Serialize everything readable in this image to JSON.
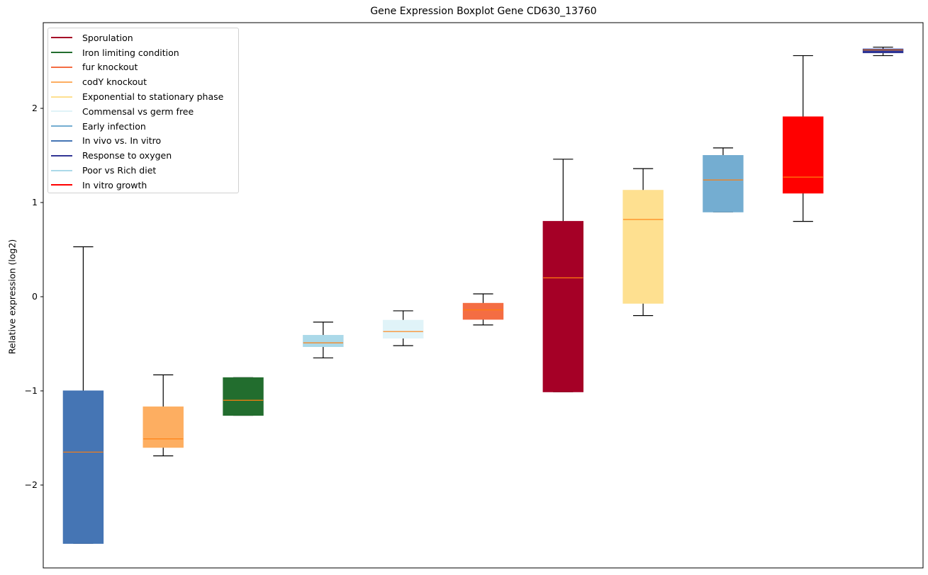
{
  "chart_data": {
    "type": "box",
    "title": "Gene Expression Boxplot Gene CD630_13760",
    "xlabel": "",
    "ylabel": "Relative expression (log2)",
    "ylim": [
      -2.88,
      2.91
    ],
    "yticks": [
      -2,
      -1,
      0,
      1,
      2
    ],
    "ytick_labels": [
      "−2",
      "−1",
      "0",
      "1",
      "2"
    ],
    "grid": false,
    "legend_position": "top-left",
    "legend": [
      {
        "label": "Sporulation",
        "color": "#a50026"
      },
      {
        "label": "Iron limiting condition",
        "color": "#226d2e"
      },
      {
        "label": "fur knockout",
        "color": "#f46d43"
      },
      {
        "label": "codY knockout",
        "color": "#fdae61"
      },
      {
        "label": "Exponential to stationary phase",
        "color": "#fee090"
      },
      {
        "label": "Commensal vs germ free",
        "color": "#e0f3f8"
      },
      {
        "label": "Early infection",
        "color": "#74add1"
      },
      {
        "label": "In vivo vs. In vitro",
        "color": "#4575b4"
      },
      {
        "label": "Response to oxygen",
        "color": "#313695"
      },
      {
        "label": "Poor vs Rich diet",
        "color": "#abd9e9"
      },
      {
        "label": "In vitro growth",
        "color": "#ff0000"
      }
    ],
    "median_color": "#ff7f0e",
    "boxes": [
      {
        "name": "In vivo vs. In vitro",
        "color": "#4575b4",
        "whislo": -2.62,
        "q1": -2.62,
        "med": -1.65,
        "q3": -1.0,
        "whishi": 0.53
      },
      {
        "name": "codY knockout",
        "color": "#fdae61",
        "whislo": -1.69,
        "q1": -1.6,
        "med": -1.51,
        "q3": -1.17,
        "whishi": -0.83
      },
      {
        "name": "Iron limiting condition",
        "color": "#226d2e",
        "whislo": -1.26,
        "q1": -1.26,
        "med": -1.1,
        "q3": -0.86,
        "whishi": -0.86
      },
      {
        "name": "Poor vs Rich diet",
        "color": "#abd9e9",
        "whislo": -0.65,
        "q1": -0.53,
        "med": -0.49,
        "q3": -0.41,
        "whishi": -0.27
      },
      {
        "name": "Commensal vs germ free",
        "color": "#e0f3f8",
        "whislo": -0.52,
        "q1": -0.44,
        "med": -0.37,
        "q3": -0.25,
        "whishi": -0.15
      },
      {
        "name": "fur knockout",
        "color": "#f46d43",
        "whislo": -0.3,
        "q1": -0.24,
        "med": -0.14,
        "q3": -0.07,
        "whishi": 0.03
      },
      {
        "name": "Sporulation",
        "color": "#a50026",
        "whislo": -1.01,
        "q1": -1.01,
        "med": 0.2,
        "q3": 0.8,
        "whishi": 1.46
      },
      {
        "name": "Exponential to stationary phase",
        "color": "#fee090",
        "whislo": -0.2,
        "q1": -0.07,
        "med": 0.82,
        "q3": 1.13,
        "whishi": 1.36
      },
      {
        "name": "Early infection",
        "color": "#74add1",
        "whislo": 0.9,
        "q1": 0.9,
        "med": 1.24,
        "q3": 1.5,
        "whishi": 1.58
      },
      {
        "name": "In vitro growth",
        "color": "#ff0000",
        "whislo": 0.8,
        "q1": 1.1,
        "med": 1.27,
        "q3": 1.91,
        "whishi": 2.56
      },
      {
        "name": "Response to oxygen",
        "color": "#313695",
        "whislo": 2.56,
        "q1": 2.59,
        "med": 2.62,
        "q3": 2.63,
        "whishi": 2.65
      }
    ]
  }
}
